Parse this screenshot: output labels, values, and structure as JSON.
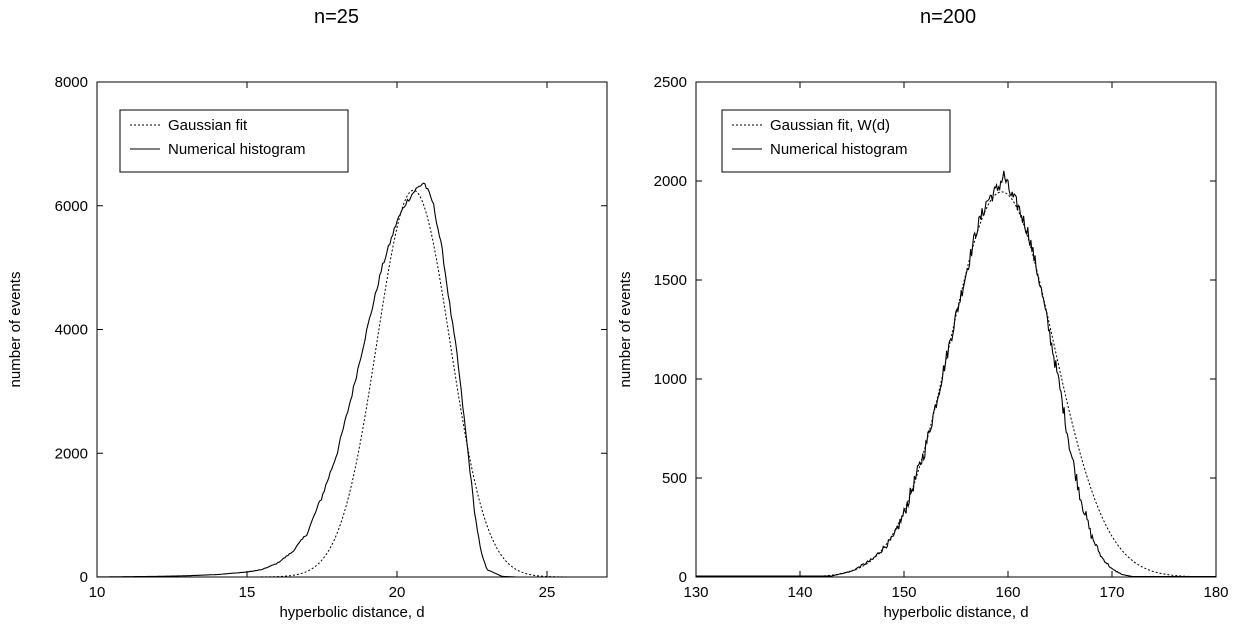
{
  "chart_data": [
    {
      "type": "line",
      "title": "n=25",
      "xlabel": "hyperbolic distance, d",
      "ylabel": "number of events",
      "xlim": [
        10,
        27
      ],
      "ylim": [
        0,
        8000
      ],
      "xticks": [
        10,
        15,
        20,
        25
      ],
      "yticks": [
        0,
        2000,
        4000,
        6000,
        8000
      ],
      "legend_position": "top-left",
      "grid": false,
      "gaussian": {
        "mean": 20.55,
        "sigma": 1.22,
        "amplitude": 6250
      },
      "series": [
        {
          "name": "Gaussian fit",
          "style": "dotted",
          "x": [
            14,
            15,
            16,
            16.5,
            17,
            17.5,
            18,
            18.5,
            19,
            19.5,
            20,
            20.5,
            21,
            21.5,
            22,
            22.5,
            23,
            23.5,
            24,
            24.5,
            25
          ],
          "values": [
            0,
            20,
            80,
            210,
            480,
            950,
            1700,
            2850,
            4180,
            5350,
            6100,
            6250,
            6000,
            5100,
            3750,
            2400,
            1330,
            650,
            270,
            90,
            25
          ]
        },
        {
          "name": "Numerical histogram",
          "style": "solid",
          "x": [
            10,
            12,
            13,
            14,
            15,
            15.5,
            16,
            16.5,
            17,
            17.5,
            18,
            18.5,
            19,
            19.5,
            20,
            20.3,
            20.6,
            20.9,
            21.2,
            21.5,
            21.8,
            22,
            22.3,
            22.6,
            22.8,
            23,
            23.5,
            24
          ],
          "values": [
            0,
            10,
            20,
            40,
            80,
            120,
            220,
            400,
            700,
            1300,
            2000,
            2950,
            4000,
            5000,
            5750,
            6050,
            6250,
            6380,
            6050,
            5300,
            4250,
            3600,
            2300,
            1000,
            400,
            120,
            10,
            0
          ]
        }
      ]
    },
    {
      "type": "line",
      "title": "n=200",
      "xlabel": "hyperbolic distance, d",
      "ylabel": "number of events",
      "xlim": [
        130,
        180
      ],
      "ylim": [
        0,
        2500
      ],
      "xticks": [
        130,
        140,
        150,
        160,
        170,
        180
      ],
      "yticks": [
        0,
        500,
        1000,
        1500,
        2000,
        2500
      ],
      "legend_position": "top-left",
      "grid": false,
      "gaussian": {
        "mean": 159.4,
        "sigma": 5.0,
        "amplitude": 1945
      },
      "series": [
        {
          "name": "Gaussian fit, W(d)",
          "style": "dotted",
          "x": [
            140,
            142,
            144,
            146,
            148,
            150,
            152,
            154,
            156,
            158,
            159.4,
            161,
            163,
            165,
            167,
            169,
            171,
            173,
            175
          ],
          "values": [
            1,
            5,
            17,
            55,
            150,
            340,
            670,
            1090,
            1550,
            1870,
            1945,
            1860,
            1500,
            1040,
            610,
            300,
            130,
            47,
            15
          ]
        },
        {
          "name": "Numerical histogram",
          "style": "solid",
          "x": [
            143,
            145,
            147,
            149,
            150,
            151,
            152,
            153,
            154,
            155,
            156,
            157,
            158,
            159,
            159.6,
            160.2,
            161,
            162,
            163,
            164,
            165,
            166,
            167,
            168,
            169,
            170,
            171,
            172
          ],
          "values": [
            5,
            30,
            90,
            200,
            320,
            480,
            640,
            860,
            1090,
            1320,
            1540,
            1760,
            1900,
            1960,
            2030,
            1940,
            1870,
            1730,
            1500,
            1230,
            950,
            640,
            400,
            210,
            100,
            40,
            12,
            2
          ]
        }
      ]
    }
  ]
}
